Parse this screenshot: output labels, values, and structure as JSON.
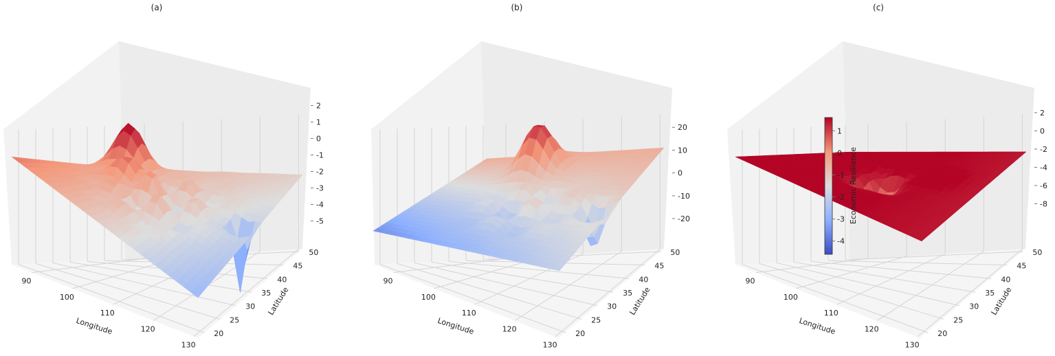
{
  "chart_data": [
    {
      "type": "surface",
      "title": "(a)",
      "xlabel": "Longitude",
      "ylabel": "Latitude",
      "zlabel": "",
      "x_ticks": [
        90,
        100,
        110,
        120,
        130
      ],
      "y_ticks": [
        20,
        25,
        30,
        35,
        40,
        45,
        50
      ],
      "z_ticks": [
        2,
        1,
        0,
        -1,
        -2,
        -3,
        -4,
        -5
      ],
      "xlim": [
        85,
        131
      ],
      "ylim": [
        18,
        51
      ],
      "zlim": [
        -5.4,
        2.9
      ],
      "colormap": "coolwarm",
      "grid": true
    },
    {
      "type": "surface",
      "title": "(b)",
      "xlabel": "Longitude",
      "ylabel": "Latitude",
      "zlabel": "",
      "x_ticks": [
        90,
        100,
        110,
        120,
        130
      ],
      "y_ticks": [
        20,
        25,
        30,
        35,
        40,
        45,
        50
      ],
      "z_ticks": [
        20,
        10,
        0,
        -10,
        -20
      ],
      "xlim": [
        85,
        131
      ],
      "ylim": [
        18,
        51
      ],
      "zlim": [
        -23,
        27
      ],
      "colormap": "coolwarm",
      "grid": true
    },
    {
      "type": "surface",
      "title": "(c)",
      "xlabel": "Longitude",
      "ylabel": "Latitude",
      "zlabel": "",
      "x_ticks": [
        90,
        100,
        110,
        120,
        130
      ],
      "y_ticks": [
        20,
        25,
        30,
        35,
        40,
        45,
        50
      ],
      "z_ticks": [
        2,
        0,
        -2,
        -4,
        -6,
        -8
      ],
      "xlim": [
        85,
        131
      ],
      "ylim": [
        18,
        51
      ],
      "zlim": [
        -9.4,
        3.2
      ],
      "colormap": "coolwarm",
      "grid": true,
      "colorbar": {
        "label": "Economic Resilience",
        "ticks": [
          1,
          0,
          -1,
          -2,
          -3,
          -4
        ],
        "range": [
          -4.6,
          1.6
        ]
      }
    }
  ],
  "colors": {
    "cool": "#3b4cc0",
    "neutral": "#dddddd",
    "warm": "#b40426",
    "pane": "#f2f2f2",
    "grid": "#d4d4d4"
  }
}
